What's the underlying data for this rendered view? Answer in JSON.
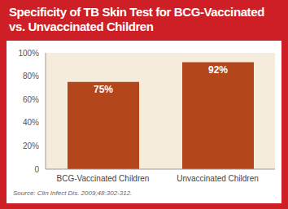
{
  "chart_data": {
    "type": "bar",
    "title": "Specificity of TB Skin Test for BCG-Vaccinated vs. Unvaccinated Children",
    "source": "Source: Clin Infect Dis. 2009;48:302-312.",
    "categories": [
      "BCG-Vaccinated Children",
      "Unvaccinated Children"
    ],
    "values": [
      75,
      92
    ],
    "value_labels": [
      "75%",
      "92%"
    ],
    "data_labels": true,
    "color": "#b4461c",
    "ylim": [
      0,
      100
    ],
    "yticks": [
      {
        "value": 0,
        "label": "0"
      },
      {
        "value": 20,
        "label": "20%"
      },
      {
        "value": 40,
        "label": "40%"
      },
      {
        "value": 60,
        "label": "60%"
      },
      {
        "value": 80,
        "label": "80%"
      },
      {
        "value": 100,
        "label": "100%"
      }
    ],
    "grid": false
  }
}
